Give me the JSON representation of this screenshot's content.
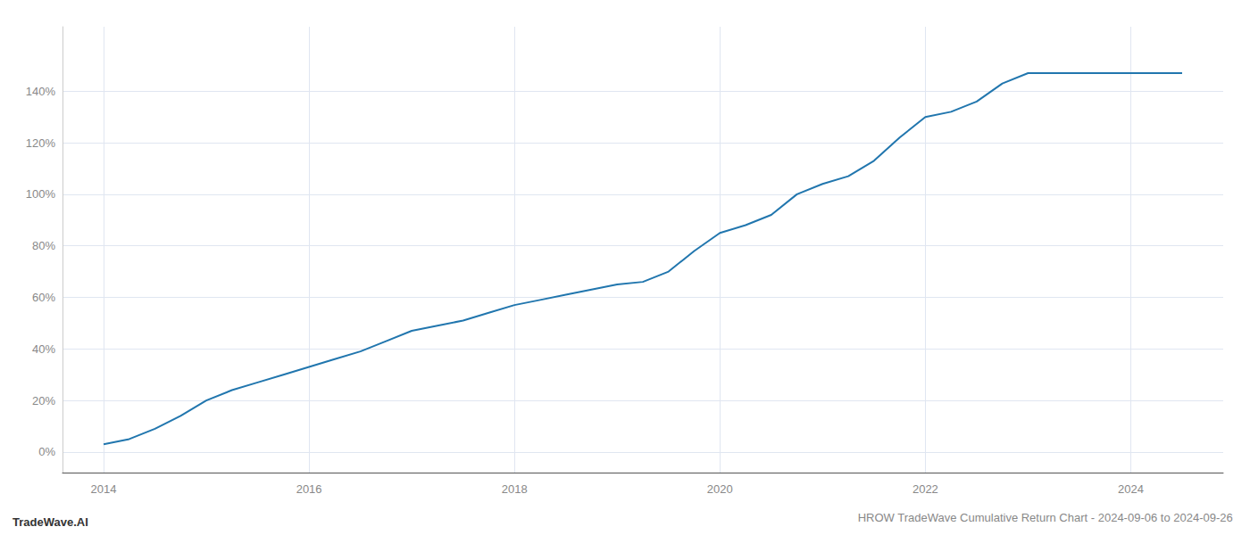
{
  "chart_data": {
    "type": "line",
    "title": "HROW TradeWave Cumulative Return Chart - 2024-09-06 to 2024-09-26",
    "annotations": [
      "TradeWave.AI"
    ],
    "x": [
      2014.0,
      2014.25,
      2014.5,
      2014.75,
      2015.0,
      2015.25,
      2015.5,
      2015.75,
      2016.0,
      2016.25,
      2016.5,
      2016.75,
      2017.0,
      2017.25,
      2017.5,
      2017.75,
      2018.0,
      2018.25,
      2018.5,
      2018.75,
      2019.0,
      2019.25,
      2019.5,
      2019.75,
      2020.0,
      2020.25,
      2020.5,
      2020.75,
      2021.0,
      2021.25,
      2021.5,
      2021.75,
      2022.0,
      2022.25,
      2022.5,
      2022.75,
      2023.0,
      2023.25,
      2023.5,
      2023.75,
      2024.0,
      2024.25,
      2024.5
    ],
    "values": [
      3,
      5,
      9,
      14,
      20,
      24,
      27,
      30,
      33,
      36,
      39,
      43,
      47,
      49,
      51,
      54,
      57,
      59,
      61,
      63,
      65,
      66,
      70,
      78,
      85,
      88,
      92,
      100,
      104,
      107,
      113,
      122,
      130,
      132,
      136,
      143,
      147,
      147,
      147,
      147,
      147,
      147,
      147
    ],
    "color": "#2176ae",
    "xlim": [
      2013.6,
      2024.9
    ],
    "xticks": [
      2014,
      2016,
      2018,
      2020,
      2022,
      2024
    ],
    "ylim": [
      -8,
      165
    ],
    "yticks": [
      {
        "value": 0,
        "label": "0%"
      },
      {
        "value": 20,
        "label": "20%"
      },
      {
        "value": 40,
        "label": "40%"
      },
      {
        "value": 60,
        "label": "60%"
      },
      {
        "value": 80,
        "label": "80%"
      },
      {
        "value": 100,
        "label": "100%"
      },
      {
        "value": 120,
        "label": "120%"
      },
      {
        "value": 140,
        "label": "140%"
      }
    ],
    "grid": true
  }
}
